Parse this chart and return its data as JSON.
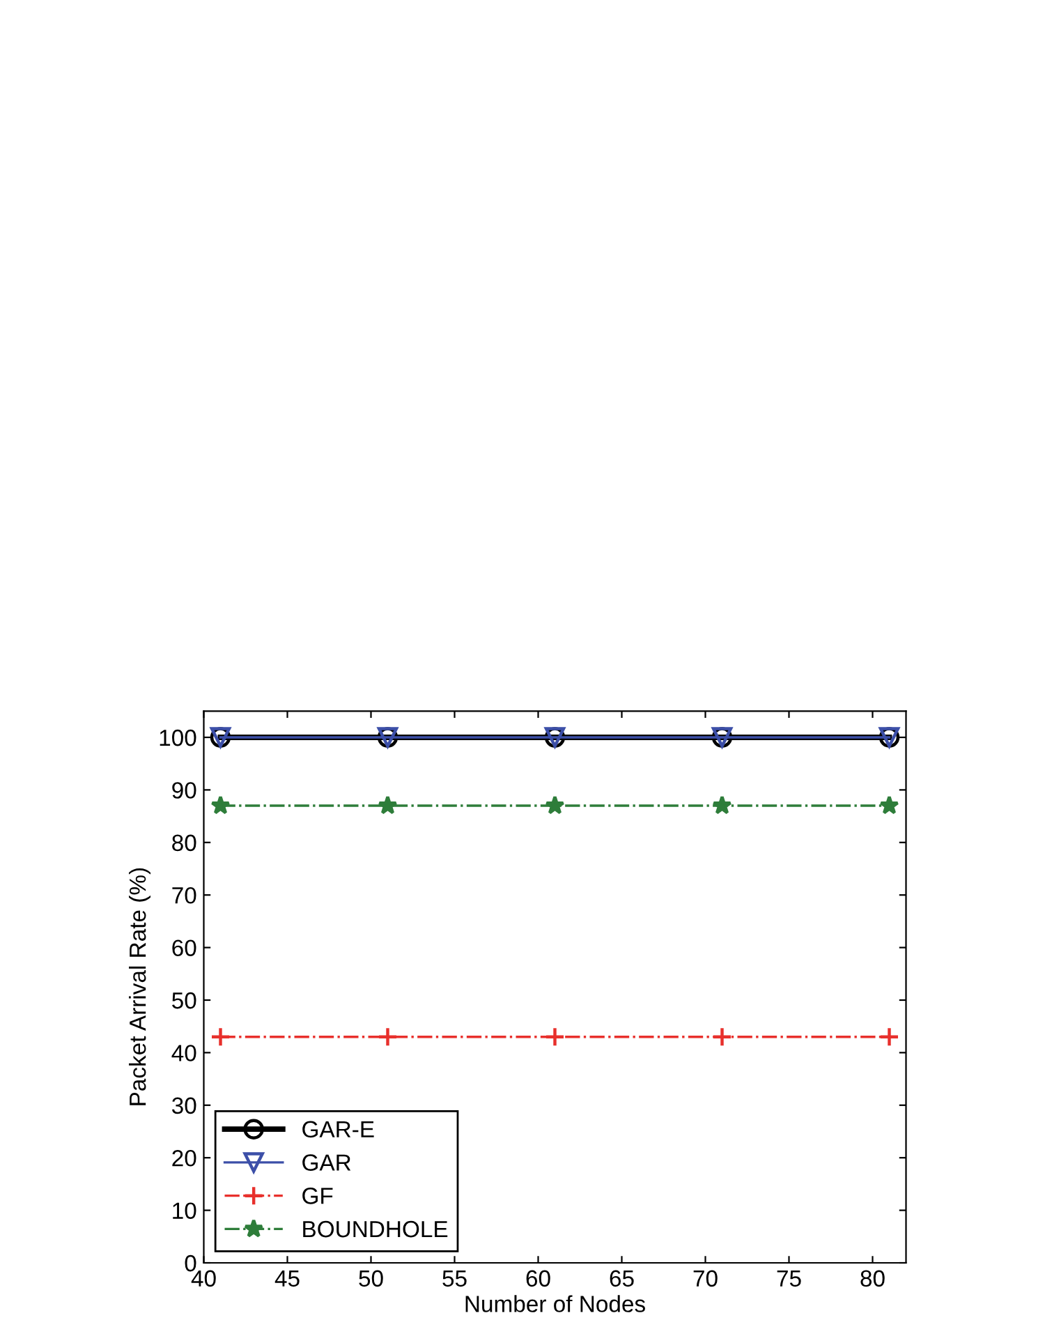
{
  "chart_data": {
    "type": "line",
    "xlabel": "Number of Nodes",
    "ylabel": "Packet Arrival Rate (%)",
    "x": [
      41,
      51,
      61,
      71,
      81
    ],
    "series": [
      {
        "name": "GAR-E",
        "color": "#000000",
        "values": [
          100,
          100,
          100,
          100,
          100
        ],
        "marker": "circle",
        "line_style": "solid"
      },
      {
        "name": "GAR",
        "color": "#3c4fa8",
        "values": [
          100,
          100,
          100,
          100,
          100
        ],
        "marker": "triangle",
        "line_style": "solid"
      },
      {
        "name": "GF",
        "color": "#e8302c",
        "values": [
          43,
          43,
          43,
          43,
          43
        ],
        "marker": "cross",
        "line_style": "dashdot"
      },
      {
        "name": "BOUNDHOLE",
        "color": "#2e7d3a",
        "values": [
          87,
          87,
          87,
          87,
          87
        ],
        "marker": "star",
        "line_style": "dashdot"
      }
    ],
    "xlim": [
      40,
      82
    ],
    "xticks": [
      40,
      45,
      50,
      55,
      60,
      65,
      70,
      75,
      80
    ],
    "ylim": [
      0,
      105
    ],
    "yticks": [
      0,
      10,
      20,
      30,
      40,
      50,
      60,
      70,
      80,
      90,
      100
    ],
    "grid": false,
    "legend": "bottom left"
  }
}
